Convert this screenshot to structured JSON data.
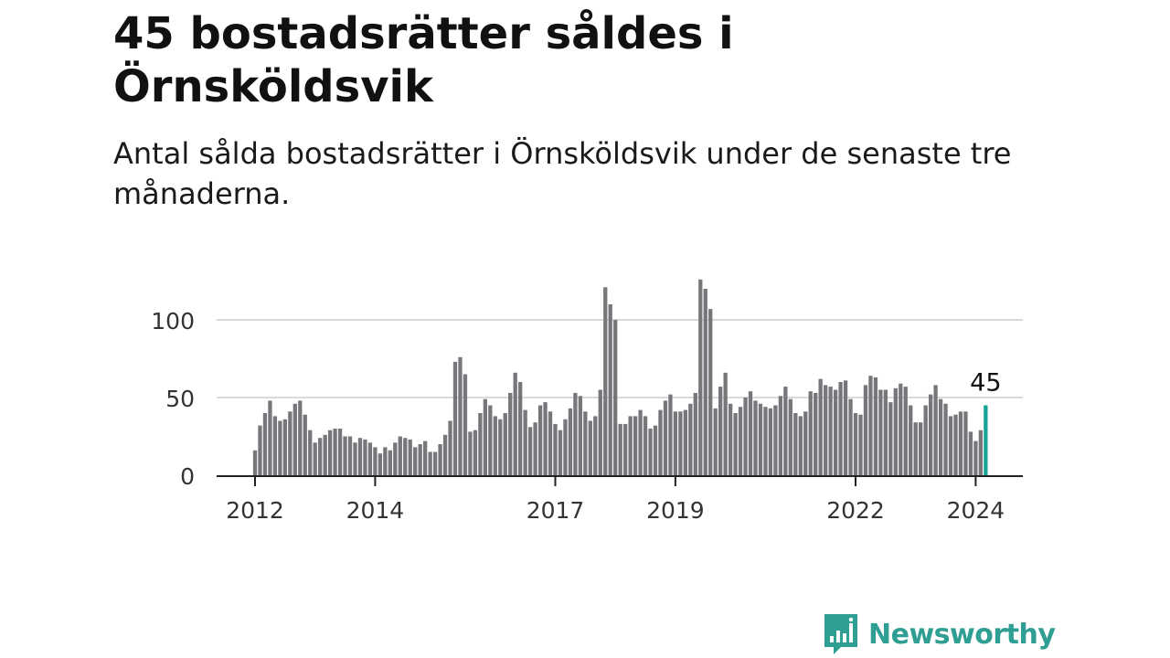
{
  "title": "45 bostadsrätter såldes i Örnsköldsvik",
  "subtitle": "Antal sålda bostadsrätter i Örnsköldsvik under de senaste tre månaderna.",
  "brand": {
    "name": "Newsworthy",
    "icon": "newsworthy-logo-icon",
    "color": "#2f9e93"
  },
  "colors": {
    "bar": "#78767b",
    "highlight": "#17a398",
    "grid": "#d9d9d9",
    "axis": "#222222"
  },
  "chart_data": {
    "type": "bar",
    "x_start": "2012-01",
    "interval": "month",
    "yticks": [
      0,
      50,
      100
    ],
    "ylim": [
      0,
      130
    ],
    "xticks": [
      {
        "label": "2012",
        "date": "2012-01"
      },
      {
        "label": "2014",
        "date": "2014-01"
      },
      {
        "label": "2017",
        "date": "2017-01"
      },
      {
        "label": "2019",
        "date": "2019-01"
      },
      {
        "label": "2022",
        "date": "2022-01"
      },
      {
        "label": "2024",
        "date": "2024-01"
      }
    ],
    "values": [
      16,
      32,
      40,
      48,
      38,
      35,
      36,
      41,
      46,
      48,
      39,
      29,
      21,
      24,
      26,
      29,
      30,
      30,
      25,
      25,
      21,
      24,
      23,
      21,
      18,
      14,
      18,
      16,
      21,
      25,
      24,
      23,
      18,
      20,
      22,
      15,
      15,
      20,
      26,
      35,
      73,
      76,
      65,
      28,
      29,
      40,
      49,
      45,
      38,
      36,
      40,
      53,
      66,
      60,
      42,
      31,
      34,
      45,
      47,
      41,
      33,
      29,
      36,
      43,
      53,
      51,
      41,
      35,
      38,
      55,
      121,
      110,
      100,
      33,
      33,
      38,
      38,
      42,
      38,
      30,
      32,
      42,
      48,
      52,
      41,
      41,
      42,
      46,
      53,
      126,
      120,
      107,
      43,
      57,
      66,
      46,
      40,
      44,
      50,
      54,
      48,
      46,
      44,
      43,
      45,
      51,
      57,
      49,
      40,
      38,
      41,
      54,
      53,
      62,
      58,
      57,
      55,
      60,
      61,
      49,
      40,
      39,
      58,
      64,
      63,
      55,
      55,
      47,
      56,
      59,
      57,
      45,
      34,
      34,
      45,
      52,
      58,
      49,
      46,
      38,
      39,
      41,
      41,
      28,
      22,
      29,
      45
    ],
    "highlight_last": true,
    "last_label": "45"
  }
}
